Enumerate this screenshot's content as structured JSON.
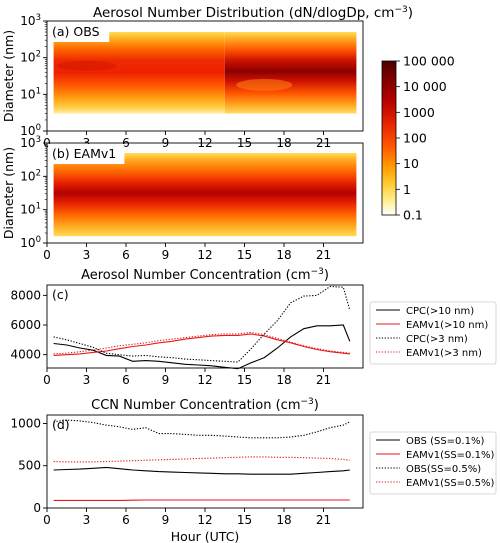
{
  "figure_title": "Aerosol Number Distribution (dN/dlogDp, cm",
  "figure_title_sup": "−3",
  "figure_title_end": ")",
  "chart_data": [
    {
      "type": "heatmap",
      "panel_label": "(a) OBS",
      "ylabel": "Diameter (nm)",
      "y_scale": "log",
      "ylim": [
        1,
        1000
      ],
      "xlim": [
        0,
        24
      ],
      "y_ticks": [
        1,
        10,
        100,
        1000
      ],
      "y_tick_labels": [
        [
          "10",
          "0"
        ],
        [
          "10",
          "1"
        ],
        [
          "10",
          "2"
        ],
        [
          "10",
          "3"
        ]
      ],
      "x_ticks": [
        0,
        3,
        6,
        9,
        12,
        15,
        18,
        21
      ],
      "x_tick_labels": [
        "0",
        "3",
        "6",
        "9",
        "12",
        "15",
        "18",
        "21"
      ],
      "data_x_range": [
        0.5,
        23.5
      ],
      "data_y_range": [
        3,
        500
      ],
      "description_cells": [
        {
          "x0": 0.5,
          "x1": 13.5,
          "y0": 3,
          "y1": 500,
          "values": [
            [
              100,
              300,
              1500,
              5000,
              9000,
              12000,
              15000,
              12000,
              9000,
              6000,
              3000,
              1500
            ]
          ]
        },
        {
          "x0": 13.5,
          "x1": 23.5,
          "y0": 3,
          "y1": 500,
          "values": [
            [
              100,
              400,
              2000,
              5000,
              8000,
              15000,
              25000,
              30000,
              20000,
              10000,
              4000,
              2000
            ]
          ]
        }
      ]
    },
    {
      "type": "heatmap",
      "panel_label": "(b) EAMv1",
      "ylabel": "Diameter (nm)",
      "y_scale": "log",
      "ylim": [
        1,
        1000
      ],
      "xlim": [
        0,
        24
      ],
      "y_ticks": [
        1,
        10,
        100,
        1000
      ],
      "y_tick_labels": [
        [
          "10",
          "0"
        ],
        [
          "10",
          "1"
        ],
        [
          "10",
          "2"
        ],
        [
          "10",
          "3"
        ]
      ],
      "x_ticks": [
        0,
        3,
        6,
        9,
        12,
        15,
        18,
        21
      ],
      "x_tick_labels": [
        "0",
        "3",
        "6",
        "9",
        "12",
        "15",
        "18",
        "21"
      ],
      "data_x_range": [
        0.5,
        23.5
      ],
      "data_y_range": [
        1.6,
        500
      ],
      "description_cells": [
        {
          "x0": 0.5,
          "x1": 23.5,
          "y0": 1.6,
          "y1": 500,
          "values": [
            [
              80,
              300,
              1200,
              4000,
              8000,
              12000,
              14000,
              12000,
              9000,
              6000,
              3000,
              1000
            ]
          ]
        }
      ]
    },
    {
      "type": "line",
      "title": "Aerosol Number Concentration (cm",
      "title_sup": "−3",
      "title_end": ")",
      "panel_label": "(c)",
      "xlim": [
        0,
        24
      ],
      "ylim": [
        3100,
        8700
      ],
      "y_ticks": [
        4000,
        6000,
        8000
      ],
      "y_tick_labels": [
        "4000",
        "6000",
        "8000"
      ],
      "x_ticks": [
        0,
        3,
        6,
        9,
        12,
        15,
        18,
        21
      ],
      "x_tick_labels": [
        "0",
        "3",
        "6",
        "9",
        "12",
        "15",
        "18",
        "21"
      ],
      "legend_position": "right",
      "x": [
        0.5,
        1.5,
        2.5,
        3.5,
        4.5,
        5.5,
        6.5,
        7.5,
        8.5,
        9.5,
        10.5,
        11.5,
        12.5,
        13.5,
        14.5,
        15.5,
        16.5,
        17.5,
        18.5,
        19.5,
        20.5,
        21.5,
        22.5,
        23
      ],
      "series": [
        {
          "name": "CPC(>10 nm)",
          "color": "#000000",
          "dash": "solid",
          "values": [
            4750,
            4650,
            4450,
            4300,
            3950,
            3900,
            3550,
            3600,
            3550,
            3450,
            3350,
            3300,
            3250,
            3150,
            3050,
            3450,
            3800,
            4450,
            5200,
            5750,
            5950,
            5950,
            6000,
            4900
          ]
        },
        {
          "name": "EAMv1(>10 nm)",
          "color": "#e41a1c",
          "dash": "solid",
          "values": [
            3950,
            4000,
            4050,
            4150,
            4250,
            4400,
            4550,
            4650,
            4800,
            4900,
            5050,
            5150,
            5250,
            5300,
            5300,
            5400,
            5250,
            5000,
            4800,
            4550,
            4350,
            4200,
            4100,
            4050
          ]
        },
        {
          "name": "CPC(>3 nm)",
          "color": "#000000",
          "dash": "dotted",
          "values": [
            5200,
            5000,
            4750,
            4500,
            4100,
            4000,
            3900,
            3950,
            3850,
            3800,
            3700,
            3650,
            3600,
            3550,
            3500,
            4400,
            5400,
            6300,
            7500,
            7950,
            8000,
            8600,
            8550,
            7000
          ]
        },
        {
          "name": "EAMv1(>3 nm)",
          "color": "#e41a1c",
          "dash": "dotted",
          "values": [
            4050,
            4100,
            4200,
            4300,
            4450,
            4600,
            4700,
            4800,
            4950,
            5050,
            5150,
            5250,
            5350,
            5400,
            5400,
            5500,
            5350,
            5100,
            4850,
            4600,
            4400,
            4250,
            4150,
            4100
          ]
        }
      ]
    },
    {
      "type": "line",
      "title": "CCN Number Concentration (cm",
      "title_sup": "−3",
      "title_end": ")",
      "panel_label": "(d)",
      "xlabel": "Hour (UTC)",
      "xlim": [
        0,
        24
      ],
      "ylim": [
        0,
        1100
      ],
      "y_ticks": [
        0,
        500,
        1000
      ],
      "y_tick_labels": [
        "0",
        "500",
        "1000"
      ],
      "x_ticks": [
        0,
        3,
        6,
        9,
        12,
        15,
        18,
        21
      ],
      "x_tick_labels": [
        "0",
        "3",
        "6",
        "9",
        "12",
        "15",
        "18",
        "21"
      ],
      "legend_position": "right",
      "x": [
        0.5,
        1.5,
        2.5,
        3.5,
        4.5,
        5.5,
        6.5,
        7.5,
        8.5,
        9.5,
        10.5,
        11.5,
        12.5,
        13.5,
        14.5,
        15.5,
        16.5,
        17.5,
        18.5,
        19.5,
        20.5,
        21.5,
        22.5,
        23
      ],
      "series": [
        {
          "name": "OBS (SS=0.1%)",
          "color": "#000000",
          "dash": "solid",
          "values": [
            450,
            455,
            460,
            470,
            480,
            465,
            450,
            440,
            430,
            425,
            420,
            415,
            410,
            405,
            405,
            400,
            400,
            400,
            400,
            410,
            420,
            430,
            440,
            450
          ]
        },
        {
          "name": "EAMv1(SS=0.1%)",
          "color": "#e41a1c",
          "dash": "solid",
          "values": [
            90,
            90,
            90,
            90,
            90,
            90,
            92,
            95,
            95,
            95,
            95,
            95,
            95,
            95,
            95,
            95,
            95,
            95,
            95,
            95,
            95,
            95,
            95,
            95
          ]
        },
        {
          "name": "OBS(SS=0.5%)",
          "color": "#000000",
          "dash": "dotted",
          "values": [
            1020,
            1040,
            1030,
            1010,
            980,
            960,
            930,
            950,
            880,
            880,
            870,
            860,
            860,
            850,
            840,
            830,
            830,
            830,
            840,
            860,
            900,
            950,
            980,
            1020
          ]
        },
        {
          "name": "EAMv1(SS=0.5%)",
          "color": "#e41a1c",
          "dash": "dotted",
          "values": [
            550,
            545,
            545,
            545,
            550,
            555,
            560,
            565,
            570,
            575,
            580,
            585,
            590,
            595,
            600,
            605,
            605,
            600,
            600,
            595,
            590,
            585,
            575,
            565
          ]
        }
      ]
    }
  ],
  "colorbar": {
    "ticks": [
      100000,
      10000,
      1000,
      100,
      10,
      1,
      0.1
    ],
    "tick_labels": [
      "100 000",
      "10 000",
      "1000",
      "100",
      "10",
      "1",
      "0.1"
    ],
    "colors": [
      "#5a0000",
      "#8b0000",
      "#c00000",
      "#e01a00",
      "#ff3300",
      "#ff6600",
      "#ff9900",
      "#ffbb33",
      "#ffdd55",
      "#ffee88",
      "#fff6c0",
      "#ffffff"
    ]
  }
}
